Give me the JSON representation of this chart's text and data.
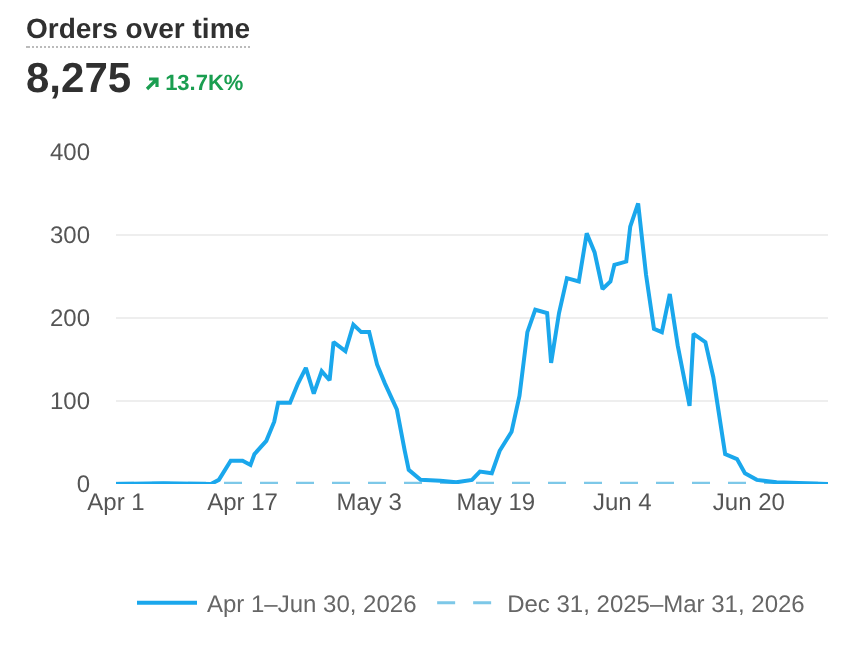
{
  "chart_data": {
    "type": "line",
    "title": "Orders over time",
    "subtitle": "8,275",
    "annotations": [
      "13.7K%"
    ],
    "xlim": [
      "2026-04-01",
      "2026-06-30"
    ],
    "xticks": [
      {
        "value": "2026-04-01",
        "label": "Apr 1"
      },
      {
        "value": "2026-04-17",
        "label": "Apr 17"
      },
      {
        "value": "2026-05-03",
        "label": "May 3"
      },
      {
        "value": "2026-05-19",
        "label": "May 19"
      },
      {
        "value": "2026-06-04",
        "label": "Jun 4"
      },
      {
        "value": "2026-06-20",
        "label": "Jun 20"
      }
    ],
    "ylim": [
      0,
      400
    ],
    "yticks": [
      0,
      100,
      200,
      300,
      400
    ],
    "grid": "y",
    "legend": "bottom",
    "marker": "none",
    "series": [
      {
        "name": "Apr 1–Jun 30, 2026",
        "color": "#1aa7ec",
        "line_style": "solid",
        "x": [
          "2026-04-01",
          "2026-04-07",
          "2026-04-13",
          "2026-04-14",
          "2026-04-15T12:00",
          "2026-04-17",
          "2026-04-18",
          "2026-04-18T12:00",
          "2026-04-20",
          "2026-04-21",
          "2026-04-21T12:00",
          "2026-04-23",
          "2026-04-24",
          "2026-04-25",
          "2026-04-26",
          "2026-04-27",
          "2026-04-28",
          "2026-04-28T12:00",
          "2026-04-30",
          "2026-05-01",
          "2026-05-02",
          "2026-05-03",
          "2026-05-04",
          "2026-05-05",
          "2026-05-06T12:00",
          "2026-05-07T12:00",
          "2026-05-08",
          "2026-05-09T12:00",
          "2026-05-12",
          "2026-05-14",
          "2026-05-16",
          "2026-05-17",
          "2026-05-18T12:00",
          "2026-05-19T12:00",
          "2026-05-21",
          "2026-05-22",
          "2026-05-23",
          "2026-05-24",
          "2026-05-25T12:00",
          "2026-05-26",
          "2026-05-27",
          "2026-05-28",
          "2026-05-29T12:00",
          "2026-05-30T12:00",
          "2026-05-31T12:00",
          "2026-06-01T12:00",
          "2026-06-02T12:00",
          "2026-06-03",
          "2026-06-04T12:00",
          "2026-06-05",
          "2026-06-06",
          "2026-06-07",
          "2026-06-08",
          "2026-06-09",
          "2026-06-10",
          "2026-06-11",
          "2026-06-12T12:00",
          "2026-06-13",
          "2026-06-14T12:00",
          "2026-06-15T12:00",
          "2026-06-16",
          "2026-06-17",
          "2026-06-18T12:00",
          "2026-06-19T12:00",
          "2026-06-21",
          "2026-06-23T12:00",
          "2026-06-30"
        ],
        "values": [
          0,
          1,
          0,
          5,
          28,
          28,
          23,
          36,
          52,
          75,
          98,
          98,
          121,
          140,
          109,
          136,
          125,
          171,
          160,
          192,
          183,
          183,
          144,
          121,
          90,
          40,
          17,
          5,
          4,
          2,
          5,
          15,
          13,
          40,
          63,
          106,
          183,
          210,
          206,
          146,
          206,
          248,
          244,
          302,
          279,
          235,
          244,
          264,
          268,
          310,
          338,
          252,
          187,
          183,
          229,
          167,
          94,
          181,
          171,
          129,
          98,
          36,
          30,
          13,
          5,
          2,
          0
        ]
      },
      {
        "name": "Dec 31, 2025–Mar 31, 2026",
        "color": "#7dc8e8",
        "line_style": "dashed",
        "x": [
          "2026-04-01",
          "2026-04-15",
          "2026-05-01",
          "2026-05-15",
          "2026-06-01",
          "2026-06-15",
          "2026-06-30"
        ],
        "values": [
          1,
          1,
          1,
          1,
          1,
          1,
          1
        ]
      }
    ]
  }
}
